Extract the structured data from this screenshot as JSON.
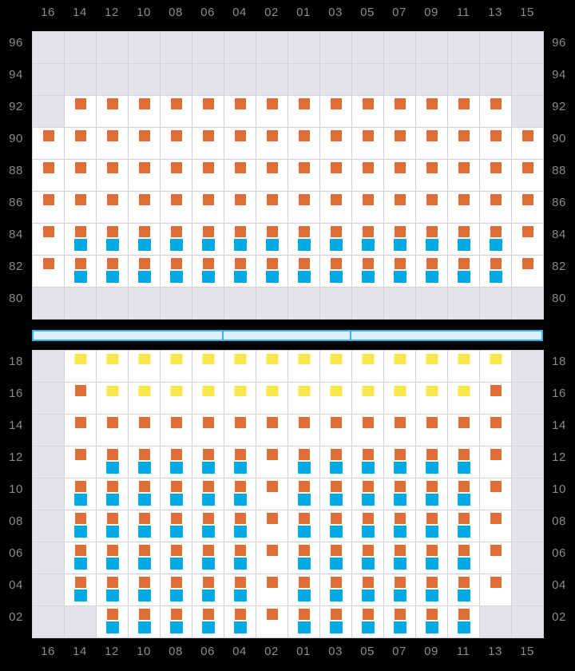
{
  "colors": {
    "background": "#000000",
    "label_text": "#8a8a91",
    "grid_line": "#d3d2d7",
    "empty_cell": "#e4e3e7",
    "data_cell": "#ffffff",
    "orange_marker": "#de6e35",
    "blue_marker": "#00a9e2",
    "yellow_marker": "#f8e74b",
    "bar_fill": "#dceefb",
    "bar_border": "#35b2e9"
  },
  "legend": {
    "O": "orange-marker",
    "B": "blue-marker",
    "Y": "yellow-marker",
    "empty": "no-data-cell"
  },
  "chart_data": {
    "type": "heatmap",
    "columns": [
      "16",
      "14",
      "12",
      "10",
      "08",
      "06",
      "04",
      "02",
      "01",
      "03",
      "05",
      "07",
      "09",
      "11",
      "13",
      "15"
    ],
    "column_axis_positions": [
      "top",
      "bottom"
    ],
    "marker_codes": {
      "O": [
        "orange"
      ],
      "OB": [
        "orange",
        "blue"
      ],
      "Y": [
        "yellow"
      ]
    },
    "panels": [
      {
        "name": "upper",
        "row_labels": [
          "96",
          "94",
          "92",
          "90",
          "88",
          "86",
          "84",
          "82",
          "80"
        ],
        "cells": [
          [
            "",
            "",
            "",
            "",
            "",
            "",
            "",
            "",
            "",
            "",
            "",
            "",
            "",
            "",
            "",
            ""
          ],
          [
            "",
            "",
            "",
            "",
            "",
            "",
            "",
            "",
            "",
            "",
            "",
            "",
            "",
            "",
            "",
            ""
          ],
          [
            "",
            "O",
            "O",
            "O",
            "O",
            "O",
            "O",
            "O",
            "O",
            "O",
            "O",
            "O",
            "O",
            "O",
            "O",
            ""
          ],
          [
            "O",
            "O",
            "O",
            "O",
            "O",
            "O",
            "O",
            "O",
            "O",
            "O",
            "O",
            "O",
            "O",
            "O",
            "O",
            "O"
          ],
          [
            "O",
            "O",
            "O",
            "O",
            "O",
            "O",
            "O",
            "O",
            "O",
            "O",
            "O",
            "O",
            "O",
            "O",
            "O",
            "O"
          ],
          [
            "O",
            "O",
            "O",
            "O",
            "O",
            "O",
            "O",
            "O",
            "O",
            "O",
            "O",
            "O",
            "O",
            "O",
            "O",
            "O"
          ],
          [
            "O",
            "OB",
            "OB",
            "OB",
            "OB",
            "OB",
            "OB",
            "OB",
            "OB",
            "OB",
            "OB",
            "OB",
            "OB",
            "OB",
            "OB",
            "O"
          ],
          [
            "O",
            "OB",
            "OB",
            "OB",
            "OB",
            "OB",
            "OB",
            "OB",
            "OB",
            "OB",
            "OB",
            "OB",
            "OB",
            "OB",
            "OB",
            "O"
          ],
          [
            "",
            "",
            "",
            "",
            "",
            "",
            "",
            "",
            "",
            "",
            "",
            "",
            "",
            "",
            "",
            ""
          ]
        ]
      },
      {
        "name": "lower",
        "row_labels": [
          "18",
          "16",
          "14",
          "12",
          "10",
          "08",
          "06",
          "04",
          "02"
        ],
        "cells": [
          [
            "",
            "Y",
            "Y",
            "Y",
            "Y",
            "Y",
            "Y",
            "Y",
            "Y",
            "Y",
            "Y",
            "Y",
            "Y",
            "Y",
            "Y",
            ""
          ],
          [
            "",
            "O",
            "Y",
            "Y",
            "Y",
            "Y",
            "Y",
            "Y",
            "Y",
            "Y",
            "Y",
            "Y",
            "Y",
            "Y",
            "O",
            ""
          ],
          [
            "",
            "O",
            "O",
            "O",
            "O",
            "O",
            "O",
            "O",
            "O",
            "O",
            "O",
            "O",
            "O",
            "O",
            "O",
            ""
          ],
          [
            "",
            "O",
            "OB",
            "OB",
            "OB",
            "OB",
            "OB",
            "O",
            "OB",
            "OB",
            "OB",
            "OB",
            "OB",
            "OB",
            "O",
            ""
          ],
          [
            "",
            "OB",
            "OB",
            "OB",
            "OB",
            "OB",
            "OB",
            "O",
            "OB",
            "OB",
            "OB",
            "OB",
            "OB",
            "OB",
            "O",
            ""
          ],
          [
            "",
            "OB",
            "OB",
            "OB",
            "OB",
            "OB",
            "OB",
            "O",
            "OB",
            "OB",
            "OB",
            "OB",
            "OB",
            "OB",
            "O",
            ""
          ],
          [
            "",
            "OB",
            "OB",
            "OB",
            "OB",
            "OB",
            "OB",
            "O",
            "OB",
            "OB",
            "OB",
            "OB",
            "OB",
            "OB",
            "O",
            ""
          ],
          [
            "",
            "OB",
            "OB",
            "OB",
            "OB",
            "OB",
            "OB",
            "O",
            "OB",
            "OB",
            "OB",
            "OB",
            "OB",
            "OB",
            "O",
            ""
          ],
          [
            "",
            "",
            "OB",
            "OB",
            "OB",
            "OB",
            "OB",
            "O",
            "OB",
            "OB",
            "OB",
            "OB",
            "OB",
            "OB",
            "",
            ""
          ]
        ]
      }
    ],
    "divider_bar": {
      "segments": 3,
      "column_spans": [
        6,
        4,
        6
      ]
    }
  }
}
